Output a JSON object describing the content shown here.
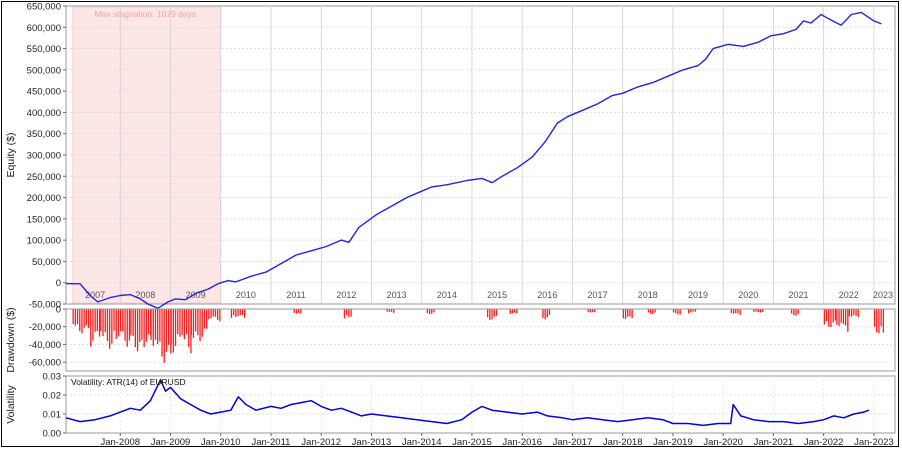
{
  "chart_data": [
    {
      "type": "line",
      "ylabel": "Equity ($)",
      "ylim": [
        -50000,
        650000
      ],
      "yticks": [
        "650,000",
        "600,000",
        "550,000",
        "500,000",
        "450,000",
        "400,000",
        "350,000",
        "300,000",
        "250,000",
        "200,000",
        "150,000",
        "100,000",
        "50,000",
        "0",
        "-50,000"
      ],
      "year_labels": [
        "2007",
        "2008",
        "2009",
        "2010",
        "2011",
        "2012",
        "2013",
        "2014",
        "2015",
        "2016",
        "2017",
        "2018",
        "2019",
        "2020",
        "2021",
        "2022",
        "2023"
      ],
      "annotation": "Max stagnation: 1079 days",
      "stagnation_x": [
        2007.05,
        2010.0
      ],
      "series_color": "#2323e6",
      "stagnation_color": "#fde6e6",
      "points": [
        [
          2006.92,
          -2000
        ],
        [
          2007.2,
          -2500
        ],
        [
          2007.4,
          -30000
        ],
        [
          2007.55,
          -45000
        ],
        [
          2007.8,
          -35000
        ],
        [
          2008.0,
          -30000
        ],
        [
          2008.2,
          -28000
        ],
        [
          2008.4,
          -38000
        ],
        [
          2008.55,
          -50000
        ],
        [
          2008.75,
          -60000
        ],
        [
          2008.95,
          -45000
        ],
        [
          2009.1,
          -38000
        ],
        [
          2009.3,
          -40000
        ],
        [
          2009.5,
          -25000
        ],
        [
          2009.75,
          -15000
        ],
        [
          2009.95,
          -2000
        ],
        [
          2010.15,
          5000
        ],
        [
          2010.3,
          2000
        ],
        [
          2010.6,
          15000
        ],
        [
          2010.9,
          25000
        ],
        [
          2011.2,
          45000
        ],
        [
          2011.5,
          65000
        ],
        [
          2011.8,
          75000
        ],
        [
          2012.1,
          85000
        ],
        [
          2012.4,
          100000
        ],
        [
          2012.55,
          95000
        ],
        [
          2012.75,
          130000
        ],
        [
          2013.1,
          160000
        ],
        [
          2013.4,
          180000
        ],
        [
          2013.7,
          200000
        ],
        [
          2013.9,
          210000
        ],
        [
          2014.2,
          225000
        ],
        [
          2014.5,
          230000
        ],
        [
          2014.9,
          240000
        ],
        [
          2015.2,
          245000
        ],
        [
          2015.4,
          235000
        ],
        [
          2015.6,
          250000
        ],
        [
          2015.9,
          270000
        ],
        [
          2016.2,
          295000
        ],
        [
          2016.45,
          330000
        ],
        [
          2016.7,
          375000
        ],
        [
          2016.9,
          390000
        ],
        [
          2017.2,
          405000
        ],
        [
          2017.5,
          420000
        ],
        [
          2017.8,
          440000
        ],
        [
          2018.0,
          445000
        ],
        [
          2018.3,
          460000
        ],
        [
          2018.6,
          470000
        ],
        [
          2018.9,
          485000
        ],
        [
          2019.2,
          500000
        ],
        [
          2019.5,
          510000
        ],
        [
          2019.65,
          525000
        ],
        [
          2019.8,
          550000
        ],
        [
          2020.1,
          560000
        ],
        [
          2020.4,
          555000
        ],
        [
          2020.7,
          565000
        ],
        [
          2020.95,
          580000
        ],
        [
          2021.2,
          585000
        ],
        [
          2021.45,
          595000
        ],
        [
          2021.6,
          615000
        ],
        [
          2021.75,
          610000
        ],
        [
          2021.95,
          630000
        ],
        [
          2022.1,
          620000
        ],
        [
          2022.35,
          605000
        ],
        [
          2022.55,
          630000
        ],
        [
          2022.75,
          635000
        ],
        [
          2023.0,
          615000
        ],
        [
          2023.15,
          608000
        ]
      ]
    },
    {
      "type": "bar",
      "ylabel": "Drawdown ($)",
      "ylim": [
        -70000,
        0
      ],
      "yticks": [
        "0",
        "-20,000",
        "-40,000",
        "-60,000"
      ],
      "bar_color": "#ff1a1a",
      "segments": [
        [
          2007.05,
          2007.4,
          -28000
        ],
        [
          2007.4,
          2007.6,
          -45000
        ],
        [
          2007.6,
          2008.2,
          -45000
        ],
        [
          2008.2,
          2008.6,
          -50000
        ],
        [
          2008.6,
          2009.0,
          -62000
        ],
        [
          2009.0,
          2009.4,
          -50000
        ],
        [
          2009.4,
          2009.75,
          -38000
        ],
        [
          2009.75,
          2010.0,
          -15000
        ],
        [
          2010.2,
          2010.5,
          -12000
        ],
        [
          2011.45,
          2011.6,
          -8000
        ],
        [
          2012.45,
          2012.6,
          -12000
        ],
        [
          2013.3,
          2013.45,
          -5000
        ],
        [
          2014.1,
          2014.25,
          -6000
        ],
        [
          2015.3,
          2015.5,
          -14000
        ],
        [
          2015.75,
          2015.9,
          -6000
        ],
        [
          2016.4,
          2016.55,
          -12000
        ],
        [
          2017.3,
          2017.45,
          -5000
        ],
        [
          2018.0,
          2018.2,
          -12000
        ],
        [
          2018.5,
          2018.65,
          -6000
        ],
        [
          2019.0,
          2019.15,
          -7000
        ],
        [
          2019.3,
          2019.45,
          -5000
        ],
        [
          2020.15,
          2020.35,
          -7000
        ],
        [
          2020.6,
          2020.8,
          -5000
        ],
        [
          2021.35,
          2021.5,
          -8000
        ],
        [
          2022.0,
          2022.25,
          -22000
        ],
        [
          2022.25,
          2022.5,
          -28000
        ],
        [
          2022.5,
          2022.7,
          -10000
        ],
        [
          2023.0,
          2023.2,
          -32000
        ]
      ]
    },
    {
      "type": "line",
      "ylabel": "Volatility",
      "legend": "Volatility: ATR(14) of EURUSD",
      "ylim": [
        0,
        0.03
      ],
      "yticks": [
        "0.03",
        "0.02",
        "0.01",
        "0.00"
      ],
      "xticks": [
        "Jan-2008",
        "Jan-2009",
        "Jan-2010",
        "Jan-2011",
        "Jan-2012",
        "Jan-2013",
        "Jan-2014",
        "Jan-2015",
        "Jan-2016",
        "Jan-2017",
        "Jan-2018",
        "Jan-2019",
        "Jan-2020",
        "Jan-2021",
        "Jan-2022",
        "Jan-2023"
      ],
      "series_color": "#0000dd",
      "points": [
        [
          2006.92,
          0.008
        ],
        [
          2007.2,
          0.006
        ],
        [
          2007.5,
          0.007
        ],
        [
          2007.8,
          0.009
        ],
        [
          2008.0,
          0.011
        ],
        [
          2008.2,
          0.013
        ],
        [
          2008.4,
          0.012
        ],
        [
          2008.6,
          0.017
        ],
        [
          2008.8,
          0.028
        ],
        [
          2008.9,
          0.022
        ],
        [
          2009.0,
          0.024
        ],
        [
          2009.2,
          0.018
        ],
        [
          2009.4,
          0.015
        ],
        [
          2009.6,
          0.012
        ],
        [
          2009.8,
          0.01
        ],
        [
          2010.0,
          0.011
        ],
        [
          2010.2,
          0.012
        ],
        [
          2010.35,
          0.019
        ],
        [
          2010.5,
          0.015
        ],
        [
          2010.7,
          0.012
        ],
        [
          2011.0,
          0.014
        ],
        [
          2011.2,
          0.013
        ],
        [
          2011.4,
          0.015
        ],
        [
          2011.6,
          0.016
        ],
        [
          2011.8,
          0.017
        ],
        [
          2012.0,
          0.014
        ],
        [
          2012.2,
          0.012
        ],
        [
          2012.4,
          0.013
        ],
        [
          2012.6,
          0.011
        ],
        [
          2012.8,
          0.009
        ],
        [
          2013.0,
          0.01
        ],
        [
          2013.3,
          0.009
        ],
        [
          2013.6,
          0.008
        ],
        [
          2013.9,
          0.007
        ],
        [
          2014.2,
          0.006
        ],
        [
          2014.5,
          0.005
        ],
        [
          2014.8,
          0.007
        ],
        [
          2015.0,
          0.011
        ],
        [
          2015.2,
          0.014
        ],
        [
          2015.4,
          0.012
        ],
        [
          2015.7,
          0.011
        ],
        [
          2016.0,
          0.01
        ],
        [
          2016.3,
          0.011
        ],
        [
          2016.5,
          0.009
        ],
        [
          2016.8,
          0.008
        ],
        [
          2017.0,
          0.007
        ],
        [
          2017.3,
          0.008
        ],
        [
          2017.6,
          0.007
        ],
        [
          2017.9,
          0.006
        ],
        [
          2018.2,
          0.007
        ],
        [
          2018.5,
          0.008
        ],
        [
          2018.8,
          0.007
        ],
        [
          2019.0,
          0.005
        ],
        [
          2019.3,
          0.005
        ],
        [
          2019.6,
          0.004
        ],
        [
          2019.9,
          0.005
        ],
        [
          2020.15,
          0.005
        ],
        [
          2020.2,
          0.015
        ],
        [
          2020.35,
          0.009
        ],
        [
          2020.6,
          0.007
        ],
        [
          2020.9,
          0.006
        ],
        [
          2021.2,
          0.006
        ],
        [
          2021.5,
          0.005
        ],
        [
          2021.8,
          0.006
        ],
        [
          2022.0,
          0.007
        ],
        [
          2022.2,
          0.009
        ],
        [
          2022.4,
          0.008
        ],
        [
          2022.6,
          0.01
        ],
        [
          2022.8,
          0.011
        ],
        [
          2022.9,
          0.012
        ]
      ]
    }
  ]
}
